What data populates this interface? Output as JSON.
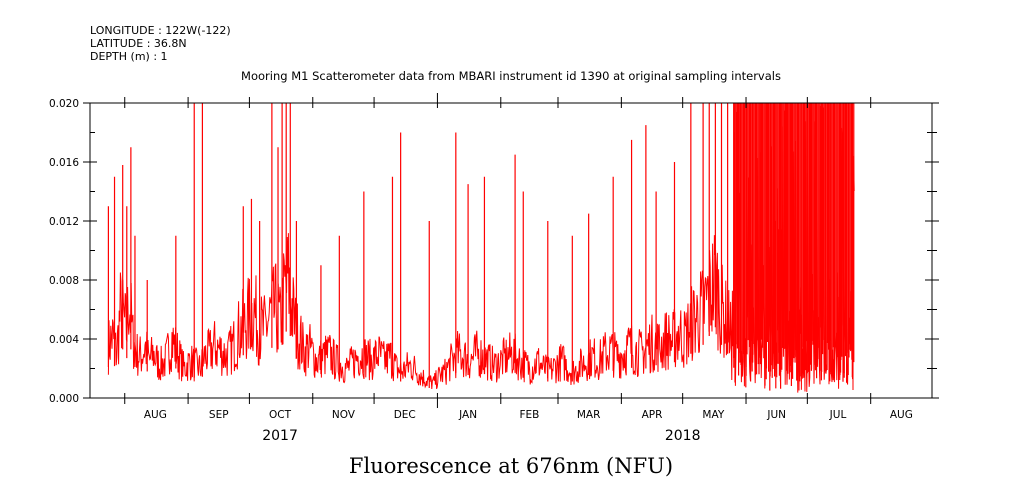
{
  "header": {
    "longitude": "LONGITUDE : 122W(-122)",
    "latitude": "LATITUDE : 36.8N",
    "depth": "DEPTH (m) : 1"
  },
  "colors": {
    "series": "#ff0000",
    "axis": "#000000"
  },
  "chart_data": {
    "type": "line",
    "title": "Mooring M1 Scatterometer data from MBARI instrument id 1390 at original sampling intervals",
    "xlabel": "Fluorescence at 676nm (NFU)",
    "ylabel": "",
    "ylim": [
      0.0,
      0.02
    ],
    "yticks": [
      "0.000",
      "0.004",
      "0.008",
      "0.012",
      "0.016",
      "0.020"
    ],
    "xlim": [
      "2017-07-15",
      "2018-08-31"
    ],
    "month_labels": [
      "AUG",
      "SEP",
      "OCT",
      "NOV",
      "DEC",
      "JAN",
      "FEB",
      "MAR",
      "APR",
      "MAY",
      "JUN",
      "JUL",
      "AUG"
    ],
    "month_centers": [
      "2017-08-16",
      "2017-09-16",
      "2017-10-16",
      "2017-11-16",
      "2017-12-16",
      "2018-01-16",
      "2018-02-15",
      "2018-03-16",
      "2018-04-16",
      "2018-05-16",
      "2018-06-16",
      "2018-07-16",
      "2018-08-16"
    ],
    "year_labels": [
      {
        "label": "2017",
        "date": "2017-10-16"
      },
      {
        "label": "2018",
        "date": "2018-05-01"
      }
    ],
    "grid": false,
    "series": [
      {
        "x": [
          "2017-07-24",
          "2017-07-26",
          "2017-07-28",
          "2017-07-30",
          "2017-08-01",
          "2017-08-02",
          "2017-08-03",
          "2017-08-05",
          "2017-08-07",
          "2017-08-09",
          "2017-08-11",
          "2017-08-13",
          "2017-08-15",
          "2017-08-18",
          "2017-08-21",
          "2017-08-24",
          "2017-08-27",
          "2017-08-30",
          "2017-09-02",
          "2017-09-05",
          "2017-09-07",
          "2017-09-09",
          "2017-09-11",
          "2017-09-14",
          "2017-09-17",
          "2017-09-20",
          "2017-09-23",
          "2017-09-26",
          "2017-09-29",
          "2017-10-01",
          "2017-10-03",
          "2017-10-05",
          "2017-10-08",
          "2017-10-11",
          "2017-10-14",
          "2017-10-16",
          "2017-10-18",
          "2017-10-20",
          "2017-10-22",
          "2017-10-24",
          "2017-10-26",
          "2017-10-28",
          "2017-10-30",
          "2017-11-01",
          "2017-11-03",
          "2017-11-06",
          "2017-11-09",
          "2017-11-12",
          "2017-11-15",
          "2017-11-18",
          "2017-11-21",
          "2017-11-24",
          "2017-11-27",
          "2017-11-30",
          "2017-12-03",
          "2017-12-06",
          "2017-12-09",
          "2017-12-12",
          "2017-12-15",
          "2017-12-18",
          "2017-12-21",
          "2017-12-24",
          "2017-12-27",
          "2017-12-30",
          "2018-01-02",
          "2018-01-05",
          "2018-01-08",
          "2018-01-11",
          "2018-01-14",
          "2018-01-17",
          "2018-01-20",
          "2018-01-23",
          "2018-01-26",
          "2018-01-29",
          "2018-02-01",
          "2018-02-04",
          "2018-02-07",
          "2018-02-10",
          "2018-02-13",
          "2018-02-16",
          "2018-02-19",
          "2018-02-22",
          "2018-02-25",
          "2018-02-28",
          "2018-03-03",
          "2018-03-06",
          "2018-03-09",
          "2018-03-12",
          "2018-03-15",
          "2018-03-18",
          "2018-03-21",
          "2018-03-24",
          "2018-03-27",
          "2018-03-30",
          "2018-04-02",
          "2018-04-05",
          "2018-04-08",
          "2018-04-11",
          "2018-04-14",
          "2018-04-17",
          "2018-04-20",
          "2018-04-23",
          "2018-04-26",
          "2018-04-29",
          "2018-05-02",
          "2018-05-05",
          "2018-05-08",
          "2018-05-11",
          "2018-05-14",
          "2018-05-17",
          "2018-05-20",
          "2018-05-23",
          "2018-05-26",
          "2018-05-29",
          "2018-06-01",
          "2018-06-04",
          "2018-06-07",
          "2018-06-10",
          "2018-06-13",
          "2018-06-16",
          "2018-06-19",
          "2018-06-22",
          "2018-06-25",
          "2018-06-28",
          "2018-07-01",
          "2018-07-04",
          "2018-07-07",
          "2018-07-10",
          "2018-07-13",
          "2018-07-16",
          "2018-07-19",
          "2018-07-22",
          "2018-07-24"
        ],
        "y": [
          0.0035,
          0.0042,
          0.003,
          0.006,
          0.005,
          0.0045,
          0.007,
          0.004,
          0.003,
          0.0028,
          0.0035,
          0.0025,
          0.003,
          0.0022,
          0.0025,
          0.004,
          0.003,
          0.002,
          0.0025,
          0.0022,
          0.002,
          0.0028,
          0.003,
          0.0035,
          0.0032,
          0.0028,
          0.0035,
          0.0045,
          0.005,
          0.0055,
          0.006,
          0.005,
          0.0045,
          0.0055,
          0.006,
          0.005,
          0.007,
          0.008,
          0.006,
          0.0045,
          0.004,
          0.003,
          0.0035,
          0.003,
          0.0025,
          0.0028,
          0.003,
          0.0025,
          0.0022,
          0.002,
          0.0025,
          0.003,
          0.0028,
          0.0025,
          0.003,
          0.0025,
          0.0028,
          0.002,
          0.0018,
          0.0022,
          0.002,
          0.0015,
          0.0012,
          0.001,
          0.0015,
          0.0018,
          0.0025,
          0.003,
          0.0028,
          0.0025,
          0.003,
          0.0028,
          0.0025,
          0.0022,
          0.0025,
          0.0028,
          0.003,
          0.0025,
          0.0022,
          0.002,
          0.0025,
          0.002,
          0.0018,
          0.0022,
          0.0025,
          0.002,
          0.0018,
          0.0022,
          0.0025,
          0.0028,
          0.0025,
          0.003,
          0.0032,
          0.0028,
          0.003,
          0.0035,
          0.0032,
          0.003,
          0.0035,
          0.0038,
          0.0035,
          0.004,
          0.0038,
          0.0045,
          0.004,
          0.005,
          0.0055,
          0.006,
          0.007,
          0.008,
          0.006,
          0.005,
          0.0045,
          0.004,
          0.0035,
          0.003,
          0.004,
          0.0035,
          0.003,
          0.0028,
          0.003,
          0.0035,
          0.004,
          0.003,
          0.0028,
          0.0032,
          0.003,
          0.0028,
          0.003,
          0.0025,
          0.0028,
          0.0025,
          0.0022
        ]
      }
    ],
    "spikes": {
      "x": [
        "2017-07-24",
        "2017-07-27",
        "2017-07-31",
        "2017-08-02",
        "2017-08-04",
        "2017-08-06",
        "2017-08-12",
        "2017-08-26",
        "2017-09-04",
        "2017-09-08",
        "2017-09-28",
        "2017-10-02",
        "2017-10-06",
        "2017-10-12",
        "2017-10-15",
        "2017-10-17",
        "2017-10-19",
        "2017-10-21",
        "2017-10-24",
        "2017-11-05",
        "2017-11-14",
        "2017-11-26",
        "2017-12-10",
        "2017-12-14",
        "2017-12-28",
        "2018-01-10",
        "2018-01-16",
        "2018-01-24",
        "2018-02-08",
        "2018-02-12",
        "2018-02-24",
        "2018-03-08",
        "2018-03-16",
        "2018-03-28",
        "2018-04-06",
        "2018-04-13",
        "2018-04-18",
        "2018-04-27",
        "2018-05-05",
        "2018-05-11",
        "2018-05-14",
        "2018-05-17",
        "2018-05-20",
        "2018-05-23",
        "2018-05-26",
        "2018-05-29",
        "2018-06-01",
        "2018-06-04",
        "2018-06-06",
        "2018-06-08",
        "2018-06-11",
        "2018-06-13",
        "2018-06-15",
        "2018-06-18",
        "2018-06-21",
        "2018-06-23",
        "2018-06-25",
        "2018-06-28",
        "2018-07-01",
        "2018-07-03",
        "2018-07-05",
        "2018-07-08",
        "2018-07-10",
        "2018-07-12",
        "2018-07-14",
        "2018-07-17",
        "2018-07-19",
        "2018-07-21",
        "2018-07-23"
      ],
      "y": [
        0.013,
        0.015,
        0.0158,
        0.013,
        0.017,
        0.011,
        0.008,
        0.011,
        0.02,
        0.02,
        0.013,
        0.0135,
        0.012,
        0.02,
        0.017,
        0.02,
        0.02,
        0.02,
        0.012,
        0.009,
        0.011,
        0.014,
        0.015,
        0.018,
        0.012,
        0.018,
        0.0145,
        0.015,
        0.0165,
        0.014,
        0.012,
        0.011,
        0.0125,
        0.015,
        0.0175,
        0.0185,
        0.014,
        0.016,
        0.02,
        0.02,
        0.02,
        0.02,
        0.02,
        0.02,
        0.02,
        0.02,
        0.02,
        0.02,
        0.02,
        0.02,
        0.02,
        0.02,
        0.02,
        0.02,
        0.02,
        0.02,
        0.02,
        0.02,
        0.02,
        0.02,
        0.02,
        0.02,
        0.02,
        0.02,
        0.02,
        0.02,
        0.02,
        0.02,
        0.02
      ]
    }
  }
}
